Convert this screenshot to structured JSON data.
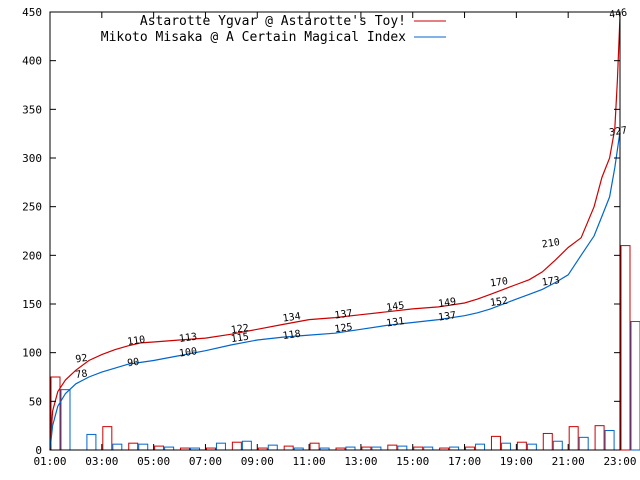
{
  "chart_data": {
    "type": "line",
    "x_ticks": [
      "01:00",
      "03:00",
      "05:00",
      "07:00",
      "09:00",
      "11:00",
      "13:00",
      "15:00",
      "17:00",
      "19:00",
      "21:00",
      "23:00"
    ],
    "y_ticks": [
      "0",
      "50",
      "100",
      "150",
      "200",
      "250",
      "300",
      "350",
      "400",
      "450"
    ],
    "xlim_hours": [
      1,
      23
    ],
    "ylim": [
      0,
      450
    ],
    "grid": false,
    "legend_position": "top-left",
    "series": [
      {
        "name": "Astarotte Ygvar @ Astarotte's Toy!",
        "color": "#cc0000",
        "cumulative": [
          [
            1.0,
            0
          ],
          [
            1.1,
            40
          ],
          [
            1.3,
            60
          ],
          [
            1.6,
            72
          ],
          [
            2.0,
            82
          ],
          [
            2.5,
            92
          ],
          [
            3.0,
            98
          ],
          [
            3.5,
            103
          ],
          [
            4.0,
            107
          ],
          [
            4.5,
            110
          ],
          [
            5.0,
            111
          ],
          [
            6.0,
            113
          ],
          [
            7.0,
            115
          ],
          [
            8.0,
            119
          ],
          [
            9.0,
            124
          ],
          [
            10.0,
            129
          ],
          [
            11.0,
            134
          ],
          [
            12.0,
            136
          ],
          [
            13.0,
            139
          ],
          [
            14.0,
            142
          ],
          [
            15.0,
            145
          ],
          [
            16.0,
            147
          ],
          [
            17.0,
            151
          ],
          [
            17.5,
            155
          ],
          [
            18.0,
            160
          ],
          [
            18.5,
            165
          ],
          [
            19.0,
            170
          ],
          [
            19.5,
            175
          ],
          [
            20.0,
            183
          ],
          [
            20.5,
            195
          ],
          [
            21.0,
            208
          ],
          [
            21.5,
            218
          ],
          [
            22.0,
            250
          ],
          [
            22.3,
            280
          ],
          [
            22.6,
            300
          ],
          [
            22.8,
            330
          ],
          [
            22.9,
            380
          ],
          [
            23.0,
            446
          ]
        ],
        "labels": [
          {
            "x": 2.0,
            "y": 92,
            "text": "92"
          },
          {
            "x": 4.0,
            "y": 110,
            "text": "110"
          },
          {
            "x": 6.0,
            "y": 113,
            "text": "113"
          },
          {
            "x": 8.0,
            "y": 122,
            "text": "122"
          },
          {
            "x": 10.0,
            "y": 134,
            "text": "134"
          },
          {
            "x": 12.0,
            "y": 137,
            "text": "137"
          },
          {
            "x": 14.0,
            "y": 145,
            "text": "145"
          },
          {
            "x": 16.0,
            "y": 149,
            "text": "149"
          },
          {
            "x": 18.0,
            "y": 170,
            "text": "170"
          },
          {
            "x": 20.0,
            "y": 210,
            "text": "210"
          },
          {
            "x": 22.6,
            "y": 446,
            "text": "446"
          }
        ],
        "hourly_bars": [
          75,
          0,
          24,
          7,
          4,
          2,
          2,
          8,
          2,
          4,
          7,
          2,
          3,
          5,
          3,
          2,
          3,
          14,
          8,
          17,
          24,
          25,
          210,
          0
        ]
      },
      {
        "name": "Mikoto Misaka @ A Certain Magical Index",
        "color": "#0066cc",
        "cumulative": [
          [
            1.0,
            0
          ],
          [
            1.1,
            25
          ],
          [
            1.3,
            45
          ],
          [
            1.6,
            58
          ],
          [
            2.0,
            68
          ],
          [
            2.5,
            75
          ],
          [
            3.0,
            80
          ],
          [
            3.5,
            84
          ],
          [
            4.0,
            88
          ],
          [
            4.5,
            90
          ],
          [
            5.0,
            92
          ],
          [
            6.0,
            97
          ],
          [
            7.0,
            102
          ],
          [
            8.0,
            108
          ],
          [
            9.0,
            113
          ],
          [
            10.0,
            116
          ],
          [
            11.0,
            118
          ],
          [
            12.0,
            120
          ],
          [
            13.0,
            124
          ],
          [
            14.0,
            128
          ],
          [
            15.0,
            131
          ],
          [
            16.0,
            134
          ],
          [
            17.0,
            138
          ],
          [
            17.5,
            141
          ],
          [
            18.0,
            145
          ],
          [
            18.5,
            150
          ],
          [
            19.0,
            155
          ],
          [
            19.5,
            160
          ],
          [
            20.0,
            165
          ],
          [
            20.5,
            172
          ],
          [
            21.0,
            180
          ],
          [
            21.5,
            200
          ],
          [
            22.0,
            220
          ],
          [
            22.3,
            240
          ],
          [
            22.6,
            260
          ],
          [
            22.8,
            290
          ],
          [
            23.0,
            327
          ]
        ],
        "labels": [
          {
            "x": 2.0,
            "y": 78,
            "text": "78"
          },
          {
            "x": 4.0,
            "y": 90,
            "text": "90"
          },
          {
            "x": 6.0,
            "y": 100,
            "text": "100"
          },
          {
            "x": 8.0,
            "y": 115,
            "text": "115"
          },
          {
            "x": 10.0,
            "y": 118,
            "text": "118"
          },
          {
            "x": 12.0,
            "y": 125,
            "text": "125"
          },
          {
            "x": 14.0,
            "y": 131,
            "text": "131"
          },
          {
            "x": 16.0,
            "y": 137,
            "text": "137"
          },
          {
            "x": 18.0,
            "y": 152,
            "text": "152"
          },
          {
            "x": 20.0,
            "y": 173,
            "text": "173"
          },
          {
            "x": 22.6,
            "y": 327,
            "text": "327"
          }
        ],
        "hourly_bars": [
          62,
          16,
          6,
          6,
          3,
          2,
          7,
          9,
          5,
          2,
          2,
          3,
          3,
          4,
          3,
          3,
          6,
          7,
          6,
          9,
          13,
          20,
          132,
          0
        ]
      }
    ]
  }
}
